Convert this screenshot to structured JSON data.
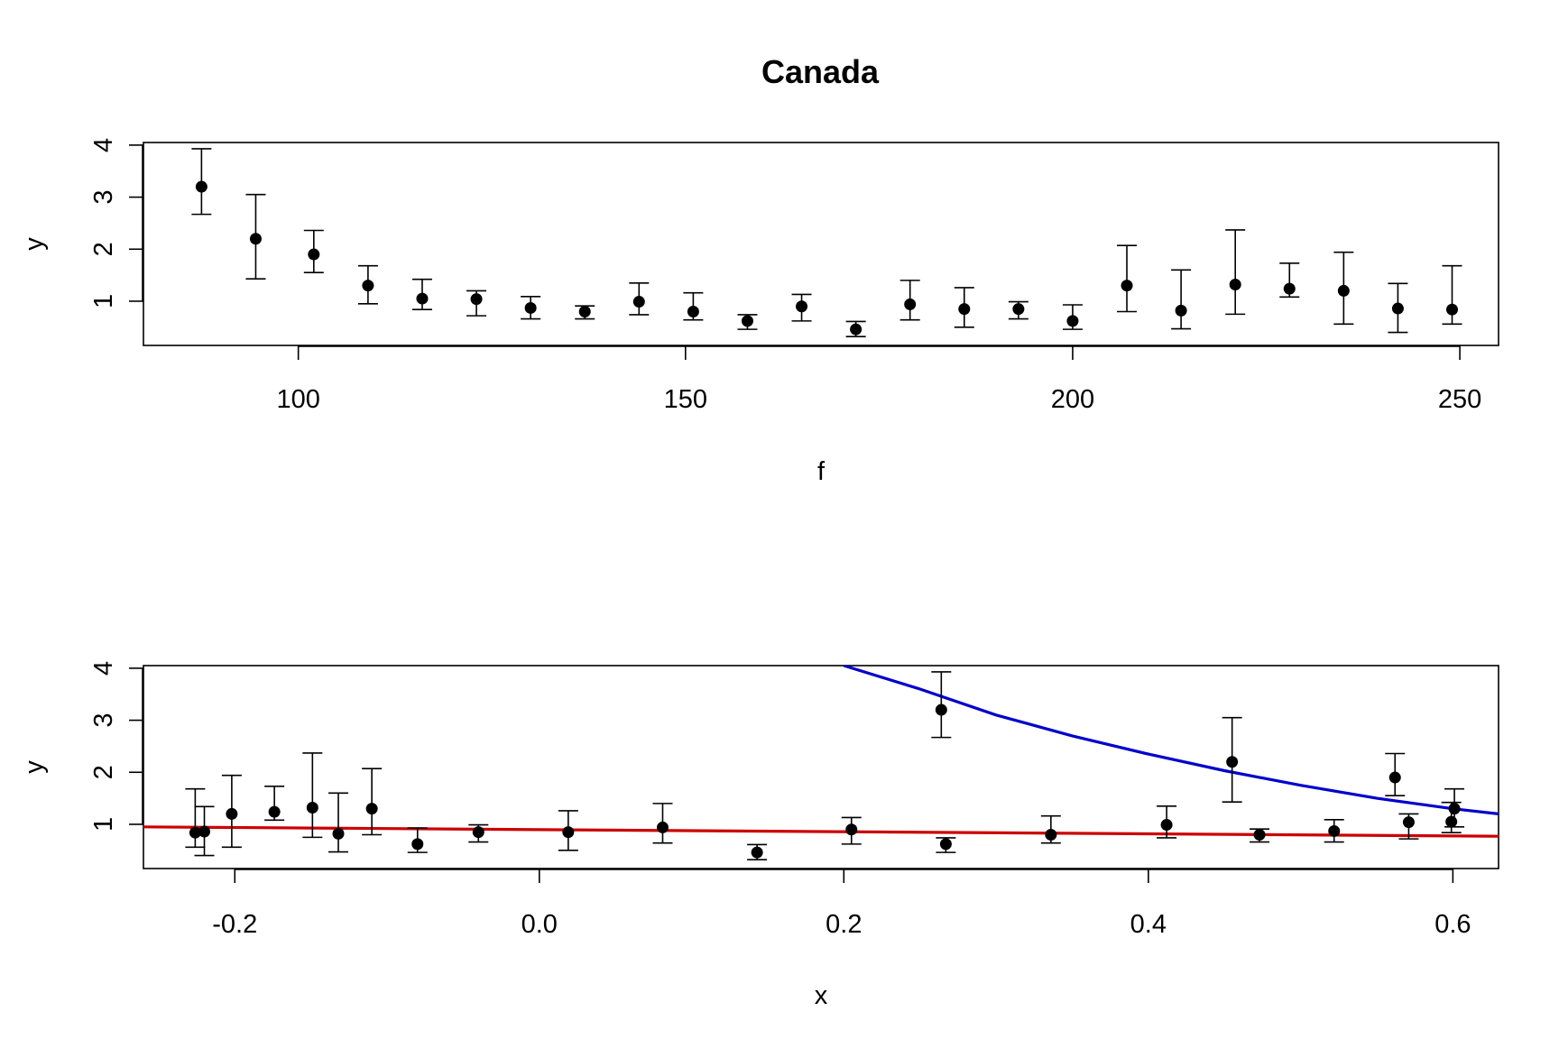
{
  "figure": {
    "title": "Canada"
  },
  "chart_data": [
    {
      "type": "scatter",
      "title": "Canada",
      "xlabel": "f",
      "ylabel": "y",
      "xlim": [
        80,
        255
      ],
      "ylim": [
        0.15,
        4.05
      ],
      "xticks": [
        100,
        150,
        200,
        250
      ],
      "yticks": [
        1,
        2,
        3,
        4
      ],
      "xtick_labels": [
        "100",
        "150",
        "200",
        "250"
      ],
      "ytick_labels": [
        "1",
        "2",
        "3",
        "4"
      ],
      "point_color": "#000000",
      "errorbar_color": "#000000",
      "series": [
        {
          "x": [
            87.5,
            94.5,
            102,
            109,
            116,
            123,
            130,
            137,
            144,
            151,
            158,
            165,
            172,
            179,
            186,
            193,
            200,
            207,
            214,
            221,
            228,
            235,
            242,
            249
          ],
          "y": [
            3.2,
            2.2,
            1.9,
            1.3,
            1.05,
            1.04,
            0.87,
            0.8,
            0.99,
            0.8,
            0.62,
            0.9,
            0.46,
            0.94,
            0.85,
            0.85,
            0.62,
            1.3,
            0.82,
            1.32,
            1.24,
            1.2,
            0.86,
            0.84
          ],
          "y_low": [
            2.67,
            1.43,
            1.55,
            0.95,
            0.84,
            0.72,
            0.66,
            0.66,
            0.74,
            0.64,
            0.46,
            0.62,
            0.32,
            0.64,
            0.5,
            0.66,
            0.46,
            0.8,
            0.47,
            0.75,
            1.08,
            0.56,
            0.4,
            0.56
          ],
          "y_high": [
            3.93,
            3.05,
            2.36,
            1.68,
            1.42,
            1.2,
            1.09,
            0.91,
            1.35,
            1.16,
            0.74,
            1.13,
            0.61,
            1.4,
            1.26,
            0.99,
            0.93,
            2.07,
            1.6,
            2.37,
            1.73,
            1.94,
            1.34,
            1.68
          ]
        }
      ]
    },
    {
      "type": "scatter",
      "xlabel": "x",
      "ylabel": "y",
      "xlim": [
        -0.26,
        0.63
      ],
      "ylim": [
        0.15,
        4.05
      ],
      "xticks": [
        -0.2,
        0.0,
        0.2,
        0.4,
        0.6
      ],
      "yticks": [
        1,
        2,
        3,
        4
      ],
      "xtick_labels": [
        "-0.2",
        "0.0",
        "0.2",
        "0.4",
        "0.6"
      ],
      "ytick_labels": [
        "1",
        "2",
        "3",
        "4"
      ],
      "point_color": "#000000",
      "errorbar_color": "#000000",
      "series": [
        {
          "x": [
            -0.226,
            -0.22,
            -0.202,
            -0.174,
            -0.149,
            -0.132,
            -0.11,
            -0.08,
            -0.04,
            0.019,
            0.081,
            0.143,
            0.205,
            0.264,
            0.267,
            0.336,
            0.412,
            0.455,
            0.473,
            0.522,
            0.562,
            0.571,
            0.599,
            0.601
          ],
          "y": [
            0.84,
            0.86,
            1.2,
            1.24,
            1.32,
            0.82,
            1.3,
            0.62,
            0.85,
            0.85,
            0.94,
            0.46,
            0.9,
            3.2,
            0.62,
            0.8,
            0.99,
            2.2,
            0.8,
            0.87,
            1.9,
            1.04,
            1.05,
            1.3
          ],
          "y_low": [
            0.56,
            0.4,
            0.56,
            1.08,
            0.75,
            0.47,
            0.8,
            0.46,
            0.66,
            0.5,
            0.64,
            0.32,
            0.62,
            2.67,
            0.46,
            0.64,
            0.74,
            1.43,
            0.66,
            0.66,
            1.55,
            0.72,
            0.84,
            0.95
          ],
          "y_high": [
            1.68,
            1.34,
            1.94,
            1.73,
            2.37,
            1.6,
            2.07,
            0.93,
            0.99,
            1.26,
            1.4,
            0.61,
            1.13,
            3.93,
            0.74,
            1.16,
            1.35,
            3.05,
            0.91,
            1.09,
            2.36,
            1.2,
            1.42,
            1.68
          ]
        }
      ],
      "lines": [
        {
          "color": "#0000cc",
          "x": [
            0.2,
            0.25,
            0.3,
            0.35,
            0.4,
            0.45,
            0.5,
            0.55,
            0.6,
            0.63
          ],
          "y": [
            4.05,
            3.6,
            3.1,
            2.7,
            2.35,
            2.03,
            1.75,
            1.5,
            1.3,
            1.2
          ]
        },
        {
          "color": "#cc0000",
          "x": [
            -0.26,
            0.63
          ],
          "y": [
            0.95,
            0.77
          ]
        }
      ]
    }
  ]
}
